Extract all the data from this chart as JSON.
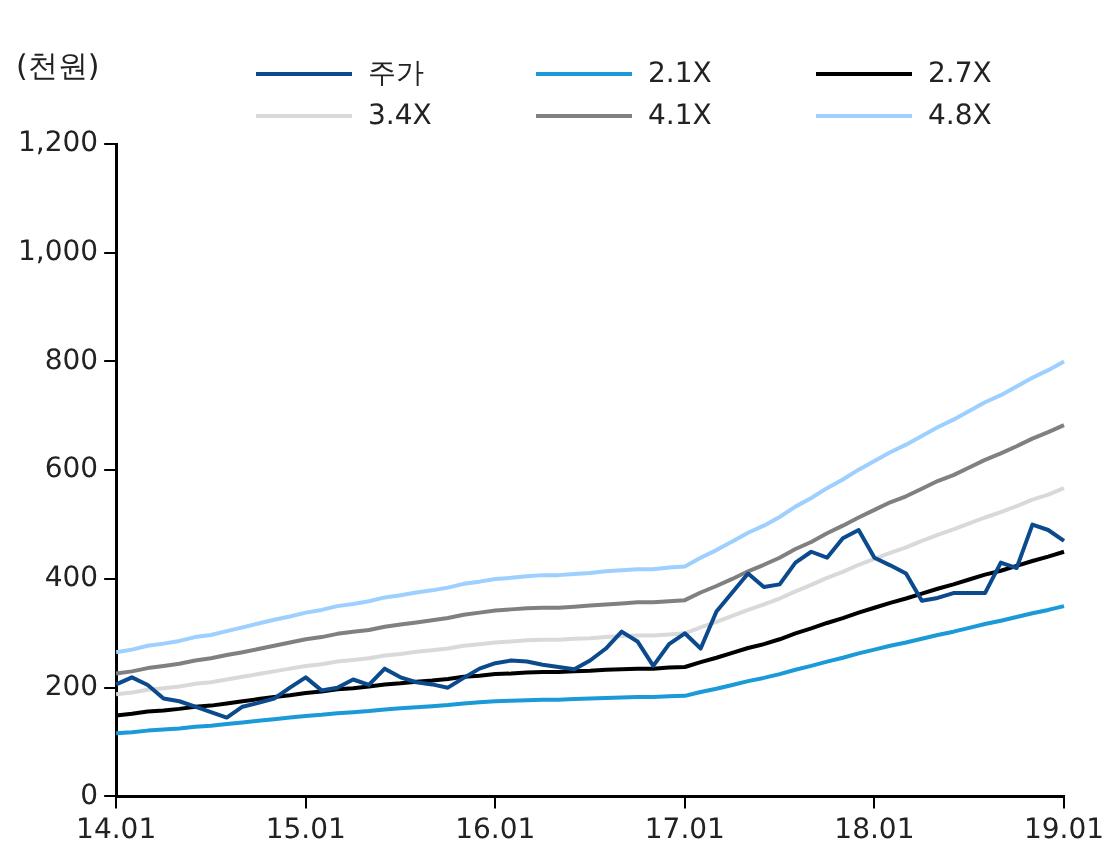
{
  "chart_data": {
    "type": "line",
    "ylabel": "(천원)",
    "categories": [
      "14.01",
      null,
      null,
      null,
      null,
      null,
      null,
      null,
      null,
      null,
      null,
      null,
      "15.01",
      null,
      null,
      null,
      null,
      null,
      null,
      null,
      null,
      null,
      null,
      null,
      "16.01",
      null,
      null,
      null,
      null,
      null,
      null,
      null,
      null,
      null,
      null,
      null,
      "17.01",
      null,
      null,
      null,
      null,
      null,
      null,
      null,
      null,
      null,
      null,
      null,
      "18.01",
      null,
      null,
      null,
      null,
      null,
      null,
      null,
      null,
      null,
      null,
      null,
      "19.01"
    ],
    "ylim": [
      0,
      1200
    ],
    "yticks": [
      0,
      {
        "value": 200,
        "label": "200"
      },
      {
        "value": 400,
        "label": "400"
      },
      {
        "value": 600,
        "label": "600"
      },
      {
        "value": 800,
        "label": "800"
      },
      {
        "value": 1000,
        "label": "1,000"
      },
      {
        "value": 1200,
        "label": "1,200"
      }
    ],
    "grid": false,
    "legend": "top",
    "marker": "none",
    "line_style": "solid",
    "series": [
      {
        "name": "주가",
        "color": "#0b4a8c",
        "values": [
          206,
          219,
          205,
          180,
          175,
          165,
          155,
          145,
          165,
          172,
          180,
          200,
          219,
          195,
          200,
          215,
          205,
          235,
          219,
          210,
          206,
          200,
          218,
          235,
          245,
          250,
          248,
          242,
          238,
          234,
          250,
          272,
          303,
          285,
          240,
          280,
          300,
          272,
          340,
          375,
          410,
          385,
          390,
          430,
          450,
          439,
          475,
          490,
          439,
          425,
          410,
          360,
          365,
          374,
          374,
          374,
          430,
          420,
          500,
          490,
          470
        ]
      },
      {
        "name": "2.1X",
        "color": "#1a9ad6",
        "values": [
          116,
          118,
          121,
          123,
          125,
          128,
          130,
          133,
          136,
          139,
          142,
          145,
          148,
          150,
          153,
          155,
          157,
          160,
          162,
          164,
          166,
          168,
          171,
          173,
          175,
          176,
          177,
          178,
          178,
          179,
          180,
          181,
          182,
          183,
          183,
          184,
          185,
          192,
          198,
          205,
          212,
          218,
          225,
          233,
          240,
          248,
          255,
          263,
          270,
          277,
          283,
          290,
          297,
          303,
          310,
          317,
          323,
          330,
          337,
          343,
          350
        ]
      },
      {
        "name": "2.7X",
        "color": "#000000",
        "values": [
          149,
          152,
          156,
          158,
          161,
          165,
          167,
          171,
          175,
          179,
          183,
          186,
          190,
          193,
          197,
          199,
          202,
          206,
          208,
          211,
          213,
          216,
          220,
          222,
          225,
          226,
          228,
          229,
          229,
          230,
          231,
          233,
          234,
          235,
          235,
          237,
          238,
          247,
          255,
          264,
          273,
          280,
          289,
          300,
          309,
          319,
          328,
          338,
          347,
          356,
          364,
          373,
          382,
          390,
          399,
          408,
          415,
          424,
          433,
          441,
          450
        ]
      },
      {
        "name": "3.4X",
        "color": "#d9d9d9",
        "values": [
          188,
          191,
          196,
          199,
          202,
          207,
          210,
          215,
          220,
          225,
          230,
          235,
          240,
          243,
          248,
          251,
          254,
          259,
          262,
          266,
          269,
          272,
          277,
          280,
          283,
          285,
          287,
          288,
          288,
          290,
          291,
          293,
          295,
          296,
          296,
          298,
          300,
          311,
          321,
          332,
          343,
          353,
          364,
          377,
          389,
          402,
          413,
          426,
          437,
          448,
          458,
          470,
          481,
          491,
          502,
          513,
          523,
          534,
          546,
          555,
          567
        ]
      },
      {
        "name": "4.1X",
        "color": "#808080",
        "values": [
          226,
          230,
          236,
          240,
          244,
          250,
          254,
          260,
          265,
          271,
          277,
          283,
          289,
          293,
          299,
          303,
          306,
          312,
          316,
          320,
          324,
          328,
          334,
          338,
          342,
          344,
          346,
          347,
          347,
          349,
          351,
          353,
          355,
          357,
          357,
          359,
          361,
          375,
          387,
          400,
          414,
          426,
          439,
          455,
          468,
          484,
          498,
          513,
          527,
          541,
          552,
          566,
          580,
          591,
          605,
          619,
          631,
          644,
          658,
          670,
          683
        ]
      },
      {
        "name": "4.8X",
        "color": "#9dcfff",
        "values": [
          265,
          270,
          277,
          281,
          286,
          293,
          297,
          304,
          311,
          318,
          325,
          331,
          338,
          343,
          350,
          354,
          359,
          366,
          370,
          375,
          379,
          384,
          391,
          395,
          400,
          402,
          405,
          407,
          407,
          409,
          411,
          414,
          416,
          418,
          418,
          421,
          423,
          439,
          453,
          469,
          485,
          498,
          514,
          533,
          549,
          567,
          583,
          601,
          617,
          633,
          647,
          663,
          679,
          693,
          709,
          725,
          738,
          754,
          770,
          784,
          800
        ]
      }
    ]
  }
}
